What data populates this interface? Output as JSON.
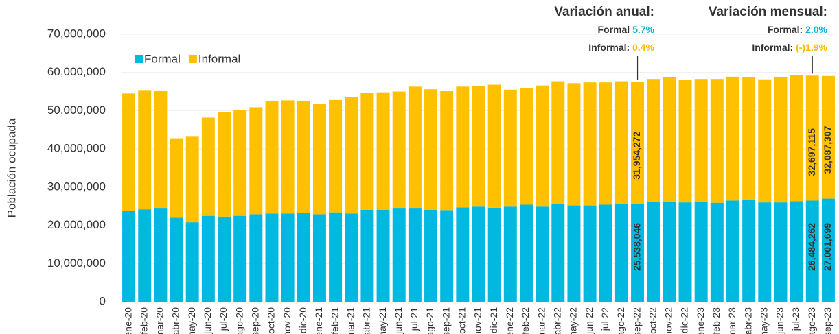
{
  "chart_data": {
    "type": "stacked_bar",
    "y_label": "Población ocupada",
    "categories": [
      "ene-20",
      "feb-20",
      "mar-20",
      "abr-20",
      "may-20",
      "jun-20",
      "jul-20",
      "ago-20",
      "sep-20",
      "oct-20",
      "nov-20",
      "dic-20",
      "ene-21",
      "feb-21",
      "mar-21",
      "abr-21",
      "may-21",
      "jun-21",
      "jul-21",
      "ago-21",
      "sep-21",
      "oct-21",
      "nov-21",
      "dic-21",
      "ene-22",
      "feb-22",
      "mar-22",
      "abr-22",
      "may-22",
      "jun-22",
      "jul-22",
      "ago-22",
      "sep-22",
      "oct-22",
      "nov-22",
      "dic-22",
      "ene-23",
      "feb-23",
      "mar-23",
      "abr-23",
      "may-23",
      "jun-23",
      "jul-23",
      "ago-23",
      "sep-23"
    ],
    "series": [
      {
        "name": "Formal",
        "color": "#00b8e0",
        "values": [
          23800000,
          24200000,
          24400000,
          22000000,
          20800000,
          22500000,
          22300000,
          22500000,
          22900000,
          23100000,
          23100000,
          23300000,
          22900000,
          23400000,
          23100000,
          24100000,
          24100000,
          24400000,
          24400000,
          24100000,
          24000000,
          24700000,
          24900000,
          24600000,
          24900000,
          25400000,
          24900000,
          25500000,
          25200000,
          25200000,
          25400000,
          25600000,
          25538046,
          26100000,
          26200000,
          26000000,
          26200000,
          25900000,
          26500000,
          26600000,
          26000000,
          26000000,
          26300000,
          26484262,
          27001699
        ],
        "value_labels": [
          null,
          null,
          null,
          null,
          null,
          null,
          null,
          null,
          null,
          null,
          null,
          null,
          null,
          null,
          null,
          null,
          null,
          null,
          null,
          null,
          null,
          null,
          null,
          null,
          null,
          null,
          null,
          null,
          null,
          null,
          null,
          null,
          "25,538,046",
          null,
          null,
          null,
          null,
          null,
          null,
          null,
          null,
          null,
          null,
          "26,484,262",
          "27,001,699"
        ]
      },
      {
        "name": "Informal",
        "color": "#ffc000",
        "values": [
          30700000,
          31200000,
          30900000,
          20800000,
          22400000,
          25700000,
          27300000,
          27700000,
          28000000,
          29500000,
          29600000,
          29300000,
          28900000,
          29400000,
          30500000,
          30600000,
          30700000,
          30600000,
          31900000,
          31500000,
          31100000,
          31600000,
          31600000,
          32200000,
          30600000,
          30600000,
          31700000,
          32200000,
          32000000,
          32200000,
          32000000,
          32100000,
          31954272,
          32200000,
          32600000,
          32000000,
          32100000,
          32400000,
          32400000,
          32200000,
          32200000,
          32700000,
          33100000,
          32697115,
          32087307
        ],
        "value_labels": [
          null,
          null,
          null,
          null,
          null,
          null,
          null,
          null,
          null,
          null,
          null,
          null,
          null,
          null,
          null,
          null,
          null,
          null,
          null,
          null,
          null,
          null,
          null,
          null,
          null,
          null,
          null,
          null,
          null,
          null,
          null,
          null,
          "31,954,272",
          null,
          null,
          null,
          null,
          null,
          null,
          null,
          null,
          null,
          null,
          "32,697,115",
          "32,087,307"
        ]
      }
    ],
    "ylim": [
      0,
      70000000
    ],
    "yticks": [
      0,
      {
        "value": 10000000,
        "label": "10,000,000"
      },
      {
        "value": 20000000,
        "label": "20,000,000"
      },
      {
        "value": 30000000,
        "label": "30,000,000"
      },
      {
        "value": 40000000,
        "label": "40,000,000"
      },
      {
        "value": 50000000,
        "label": "50,000,000"
      },
      {
        "value": 60000000,
        "label": "60,000,000"
      },
      {
        "value": 70000000,
        "label": "70,000,000"
      }
    ],
    "grid": true,
    "legend": "top-left",
    "annotations": [
      {
        "title": "Variación anual:",
        "lines": [
          {
            "label": "Formal",
            "value": "5.7%"
          },
          {
            "label": "Informal:",
            "value": "0.4%"
          }
        ]
      },
      {
        "title": "Variación mensual:",
        "lines": [
          {
            "label": "Formal:",
            "value": "2.0%"
          },
          {
            "label": "Informal:",
            "value": "(-)1.9%"
          }
        ]
      }
    ]
  }
}
